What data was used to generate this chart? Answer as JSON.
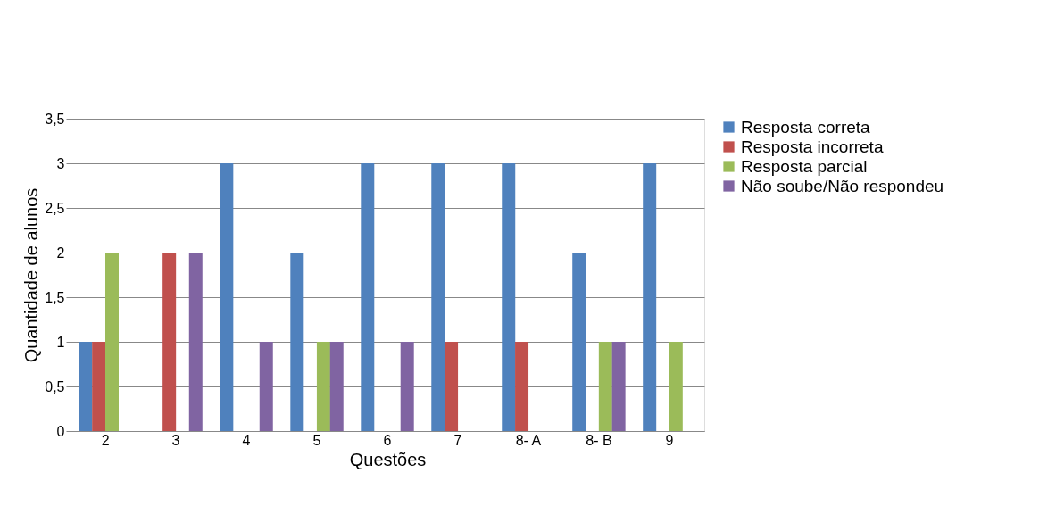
{
  "chart_data": {
    "type": "bar",
    "xlabel": "Questões",
    "ylabel": "Quantidade de alunos",
    "categories": [
      "2",
      "3",
      "4",
      "5",
      "6",
      "7",
      "8- A",
      "8- B",
      "9"
    ],
    "series": [
      {
        "name": "Resposta correta",
        "color": "#4f81bd",
        "values": [
          1,
          0,
          3,
          2,
          3,
          3,
          3,
          2,
          3
        ]
      },
      {
        "name": "Resposta incorreta",
        "color": "#c0504d",
        "values": [
          1,
          2,
          0,
          0,
          0,
          1,
          1,
          0,
          0
        ]
      },
      {
        "name": "Resposta parcial",
        "color": "#9bbb59",
        "values": [
          2,
          0,
          0,
          1,
          0,
          0,
          0,
          1,
          1
        ]
      },
      {
        "name": "Não soube/Não respondeu",
        "color": "#8064a2",
        "values": [
          0,
          2,
          1,
          1,
          1,
          0,
          0,
          1,
          0
        ]
      }
    ],
    "ylim": [
      0,
      3.5
    ],
    "yticks": [
      0,
      {
        "value": 0.5,
        "label": "0,5"
      },
      1,
      {
        "value": 1.5,
        "label": "1,5"
      },
      2,
      {
        "value": 2.5,
        "label": "2,5"
      },
      3,
      {
        "value": 3.5,
        "label": "3,5"
      }
    ],
    "grid": "y",
    "legend": "right"
  }
}
